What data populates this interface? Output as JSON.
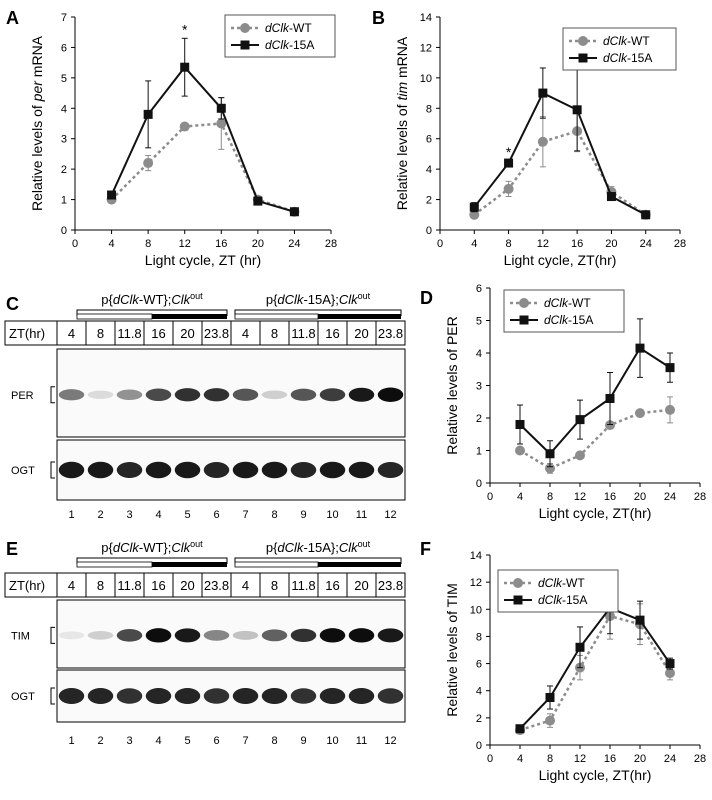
{
  "panel_labels": {
    "A": "A",
    "B": "B",
    "C": "C",
    "D": "D",
    "E": "E",
    "F": "F"
  },
  "colors": {
    "wt": "#8c8c8c",
    "mut": "#111111",
    "axis": "#000000"
  },
  "legend": {
    "wt_prefix": "dClk",
    "wt_suffix": "-WT",
    "mut_prefix": "dClk",
    "mut_suffix": "-15A"
  },
  "chart_data": [
    {
      "id": "A",
      "type": "line",
      "ylabel_parts": [
        "Relative levels of ",
        "per",
        " mRNA"
      ],
      "xlabel": "Light cycle, ZT (hr)",
      "xlim": [
        0,
        28
      ],
      "ylim": [
        0,
        7
      ],
      "xticks": [
        0,
        4,
        8,
        12,
        16,
        20,
        24,
        28
      ],
      "yticks": [
        0,
        1,
        2,
        3,
        4,
        5,
        6,
        7
      ],
      "legend_position": "top-right",
      "annotations": [
        {
          "text": "*",
          "x": 12
        }
      ],
      "x": [
        4,
        8,
        12,
        16,
        20,
        24
      ],
      "series": [
        {
          "key": "wt",
          "values": [
            1.0,
            2.2,
            3.4,
            3.5,
            1.0,
            0.6
          ],
          "errors": [
            0.1,
            0.25,
            0.1,
            0.85,
            0.1,
            0.1
          ]
        },
        {
          "key": "mut",
          "values": [
            1.15,
            3.8,
            5.35,
            4.0,
            0.95,
            0.6
          ],
          "errors": [
            0.1,
            1.1,
            0.95,
            0.35,
            0.1,
            0.1
          ]
        }
      ]
    },
    {
      "id": "B",
      "type": "line",
      "ylabel_parts": [
        "Relative levels of ",
        "tim",
        " mRNA"
      ],
      "xlabel": "Light cycle, ZT(hr)",
      "xlim": [
        0,
        28
      ],
      "ylim": [
        0,
        14
      ],
      "xticks": [
        0,
        4,
        8,
        12,
        16,
        20,
        24,
        28
      ],
      "yticks": [
        0,
        2,
        4,
        6,
        8,
        10,
        12,
        14
      ],
      "legend_position": "top-right",
      "annotations": [
        {
          "text": "*",
          "x": 8
        }
      ],
      "x": [
        4,
        8,
        12,
        16,
        20,
        24
      ],
      "series": [
        {
          "key": "wt",
          "values": [
            1.0,
            2.7,
            5.8,
            6.5,
            2.5,
            1.0
          ],
          "errors": [
            0.2,
            0.5,
            1.65,
            1.35,
            0.35,
            0.2
          ]
        },
        {
          "key": "mut",
          "values": [
            1.5,
            4.4,
            9.0,
            7.9,
            2.2,
            1.0
          ],
          "errors": [
            0.3,
            0.15,
            1.65,
            2.7,
            0.25,
            0.2
          ]
        }
      ]
    },
    {
      "id": "D",
      "type": "line",
      "ylabel_parts": [
        "Relative levels of PER"
      ],
      "xlabel": "Light cycle, ZT(hr)",
      "xlim": [
        0,
        28
      ],
      "ylim": [
        0,
        6
      ],
      "xticks": [
        0,
        4,
        8,
        12,
        16,
        20,
        24,
        28
      ],
      "yticks": [
        0,
        1,
        2,
        3,
        4,
        5,
        6
      ],
      "legend_position": "top-left",
      "annotations": [],
      "x": [
        4,
        8,
        12,
        16,
        20,
        24
      ],
      "series": [
        {
          "key": "wt",
          "values": [
            1.0,
            0.45,
            0.85,
            1.78,
            2.15,
            2.25
          ],
          "errors": [
            0.1,
            0.15,
            0.1,
            0.1,
            0.1,
            0.4
          ]
        },
        {
          "key": "mut",
          "values": [
            1.8,
            0.9,
            1.95,
            2.6,
            4.15,
            3.55
          ],
          "errors": [
            0.6,
            0.4,
            0.6,
            0.8,
            0.9,
            0.45
          ]
        }
      ]
    },
    {
      "id": "F",
      "type": "line",
      "ylabel_parts": [
        "Relative levels of TIM"
      ],
      "xlabel": "Light cycle, ZT(hr)",
      "xlim": [
        0,
        28
      ],
      "ylim": [
        0,
        14
      ],
      "xticks": [
        0,
        4,
        8,
        12,
        16,
        20,
        24,
        28
      ],
      "yticks": [
        0,
        2,
        4,
        6,
        8,
        10,
        12,
        14
      ],
      "legend_position": "top-left",
      "annotations": [],
      "x": [
        4,
        8,
        12,
        16,
        20,
        24
      ],
      "series": [
        {
          "key": "wt",
          "values": [
            1.1,
            1.8,
            5.7,
            9.5,
            8.9,
            5.3
          ],
          "errors": [
            0.2,
            0.5,
            0.9,
            1.7,
            1.5,
            0.5
          ]
        },
        {
          "key": "mut",
          "values": [
            1.2,
            3.5,
            7.2,
            10.1,
            9.2,
            6.0
          ],
          "errors": [
            0.2,
            0.85,
            1.5,
            1.9,
            1.4,
            0.4
          ]
        }
      ]
    }
  ],
  "blots": [
    {
      "id": "C",
      "groups": [
        {
          "pre": "p{",
          "it": "dClk",
          "post": "-WT};",
          "it2": "Clk",
          "sup": "out"
        },
        {
          "pre": "p{",
          "it": "dClk",
          "post": "-15A};",
          "it2": "Clk",
          "sup": "out"
        }
      ],
      "zt_label": "ZT(hr)",
      "zt": [
        "4",
        "8",
        "11.8",
        "16",
        "20",
        "23.8",
        "4",
        "8",
        "11.8",
        "16",
        "20",
        "23.8"
      ],
      "bands": [
        "PER",
        "OGT"
      ],
      "lanes": [
        "1",
        "2",
        "3",
        "4",
        "5",
        "6",
        "7",
        "8",
        "9",
        "10",
        "11",
        "12"
      ],
      "top_intensity": [
        0.55,
        0.15,
        0.45,
        0.75,
        0.85,
        0.85,
        0.7,
        0.2,
        0.7,
        0.8,
        0.95,
        1.0
      ],
      "bottom_intensity": [
        0.95,
        0.95,
        0.9,
        0.95,
        0.95,
        0.9,
        0.95,
        0.95,
        0.9,
        0.95,
        0.95,
        0.9
      ]
    },
    {
      "id": "E",
      "groups": [
        {
          "pre": "p{",
          "it": "dClk",
          "post": "-WT};",
          "it2": "Clk",
          "sup": "out"
        },
        {
          "pre": "p{",
          "it": "dClk",
          "post": "-15A};",
          "it2": "Clk",
          "sup": "out"
        }
      ],
      "zt_label": "ZT(hr)",
      "zt": [
        "4",
        "8",
        "11.8",
        "16",
        "20",
        "23.8",
        "4",
        "8",
        "11.8",
        "16",
        "20",
        "23.8"
      ],
      "bands": [
        "TIM",
        "OGT"
      ],
      "lanes": [
        "1",
        "2",
        "3",
        "4",
        "5",
        "6",
        "7",
        "8",
        "9",
        "10",
        "11",
        "12"
      ],
      "top_intensity": [
        0.1,
        0.2,
        0.75,
        1.0,
        0.95,
        0.5,
        0.25,
        0.65,
        0.85,
        1.0,
        1.0,
        0.95
      ],
      "bottom_intensity": [
        0.9,
        0.9,
        0.85,
        0.9,
        0.9,
        0.85,
        0.9,
        0.9,
        0.85,
        0.9,
        0.9,
        0.85
      ]
    }
  ]
}
